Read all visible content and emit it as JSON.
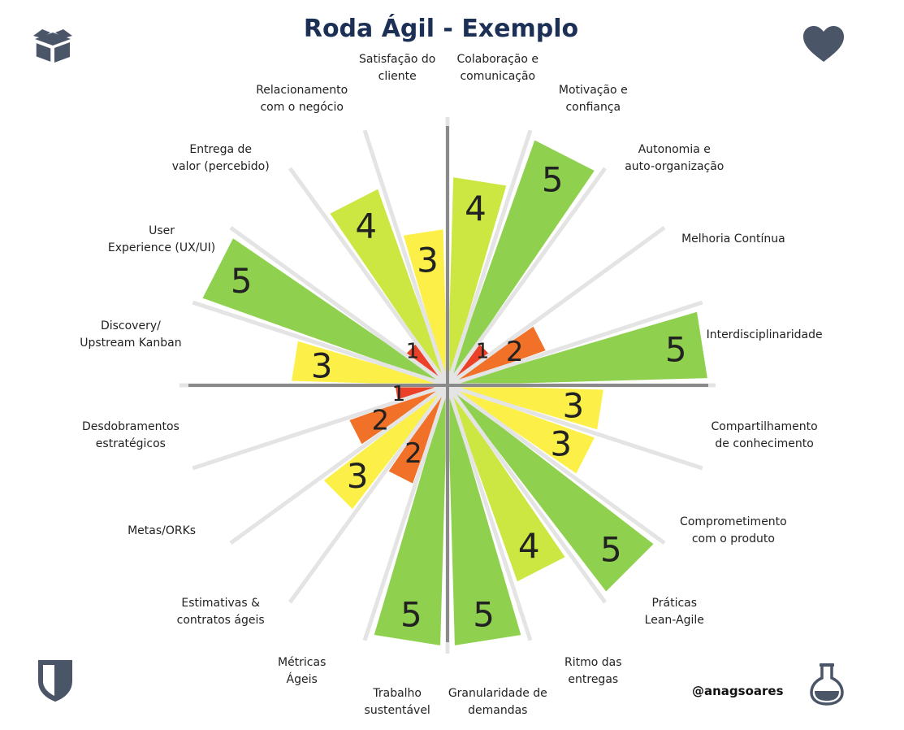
{
  "title": "Roda Ágil - Exemplo",
  "author": "@anagsoares",
  "icons": {
    "top_left": "box-icon",
    "top_right": "heart-icon",
    "bottom_left": "shield-icon",
    "bottom_right": "flask-icon",
    "color": "#4a5568"
  },
  "score_colors": {
    "1": "#ea4128",
    "2": "#f07127",
    "3": "#fcf048",
    "4": "#cce642",
    "5": "#8fd14f"
  },
  "chart_data": {
    "type": "radial-bar",
    "scale_max": 5,
    "categories": [
      "Colaboração e\ncomunicação",
      "Motivação e\nconfiança",
      "Autonomia e\nauto-organização",
      "Melhoria Contínua",
      "Interdisciplinaridade",
      "Compartilhamento\nde conhecimento",
      "Comprometimento\ncom o produto",
      "Práticas\nLean-Agile",
      "Ritmo das\nentregas",
      "Granularidade de\ndemandas",
      "Trabalho\nsustentável",
      "Métricas\nÁgeis",
      "Estimativas &\ncontratos ágeis",
      "Metas/ORKs",
      "Desdobramentos\nestratégicos",
      "Discovery/\nUpstream Kanban",
      "User\nExperience (UX/UI)",
      "Entrega de\nvalor (percebido)",
      "Relacionamento\ncom o negócio",
      "Satisfação do\ncliente"
    ],
    "values": [
      4,
      5,
      1,
      2,
      5,
      3,
      3,
      5,
      4,
      5,
      5,
      2,
      3,
      2,
      1,
      3,
      5,
      1,
      4,
      3
    ]
  }
}
